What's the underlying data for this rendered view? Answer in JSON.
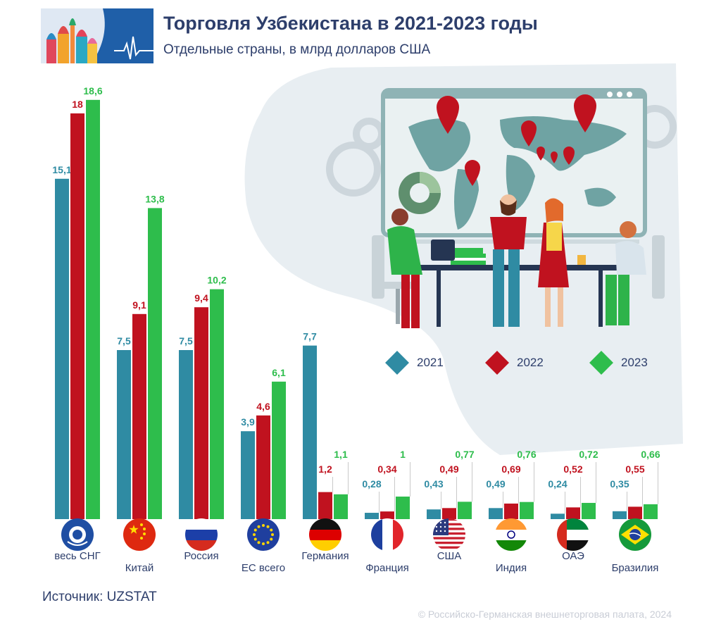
{
  "chart_data": {
    "type": "bar",
    "title": "Торговля Узбекистана в 2021-2023 годы",
    "subtitle": "Отдельные страны, в млрд долларов США",
    "categories": [
      "весь СНГ",
      "Китай",
      "Россия",
      "ЕС всего",
      "Германия",
      "Франция",
      "США",
      "Индия",
      "ОАЭ",
      "Бразилия"
    ],
    "series": [
      {
        "name": "2021",
        "color": "#2f8ba3",
        "values": [
          15.1,
          7.5,
          7.5,
          3.9,
          7.7,
          0.28,
          0.43,
          0.49,
          0.24,
          0.35
        ],
        "labels": [
          "15,1",
          "7,5",
          "7,5",
          "3,9",
          "7,7",
          "0,28",
          "0,43",
          "0,49",
          "0,24",
          "0,35"
        ]
      },
      {
        "name": "2022",
        "color": "#c0121f",
        "values": [
          18,
          9.1,
          9.4,
          4.6,
          1.2,
          0.34,
          0.49,
          0.69,
          0.52,
          0.55
        ],
        "labels": [
          "18",
          "9,1",
          "9,4",
          "4,6",
          "1,2",
          "0,34",
          "0,49",
          "0,69",
          "0,52",
          "0,55"
        ]
      },
      {
        "name": "2023",
        "color": "#2ebd4c",
        "values": [
          18.6,
          13.8,
          10.2,
          6.1,
          1.1,
          1,
          0.77,
          0.76,
          0.72,
          0.66
        ],
        "labels": [
          "18,6",
          "13,8",
          "10,2",
          "6,1",
          "1,1",
          "1",
          "0,77",
          "0,76",
          "0,72",
          "0,66"
        ]
      }
    ],
    "flag_icons": [
      "cis-emblem-icon",
      "china-flag-icon",
      "russia-flag-icon",
      "eu-flag-icon",
      "germany-flag-icon",
      "france-flag-icon",
      "usa-flag-icon",
      "india-flag-icon",
      "uae-flag-icon",
      "brazil-flag-icon"
    ],
    "legend": [
      "2021",
      "2022",
      "2023"
    ],
    "legend_position": "right"
  },
  "footer": {
    "source": "Источник: UZSTAT",
    "copyright": "© Российско-Германская внешнеторговая палата, 2024"
  }
}
